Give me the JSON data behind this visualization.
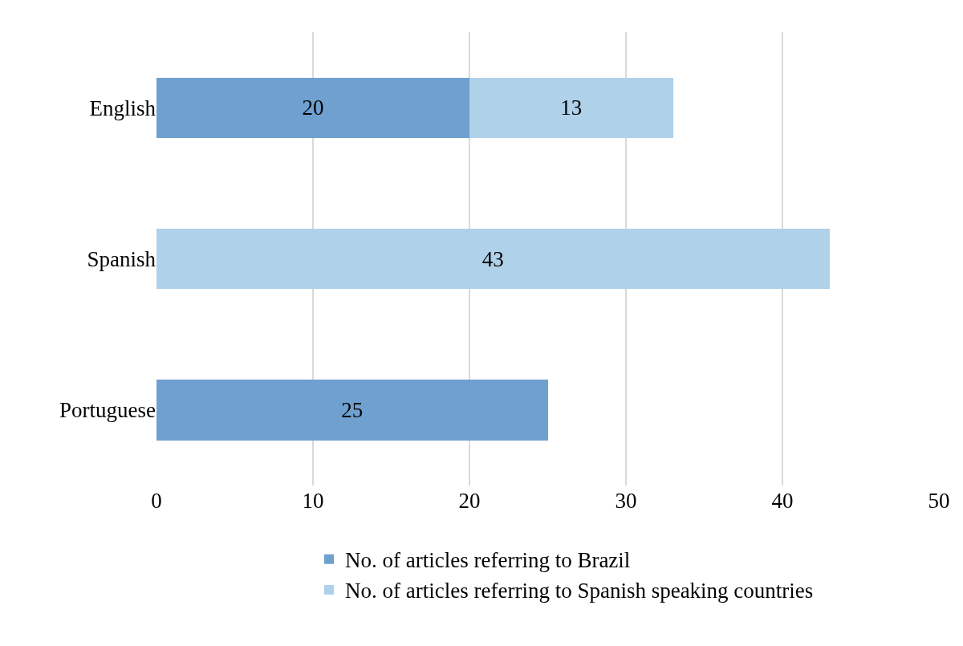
{
  "chart_data": {
    "type": "bar",
    "orientation": "horizontal",
    "stacked": true,
    "categories": [
      "English",
      "Spanish",
      "Portuguese"
    ],
    "series": [
      {
        "name": "No. of articles referring to Brazil",
        "color": "#6fa0cf",
        "values": [
          20,
          null,
          25
        ]
      },
      {
        "name": "No. of articles referring to Spanish speaking countries",
        "color": "#afd1ea",
        "values": [
          13,
          43,
          null
        ]
      }
    ],
    "xlim": [
      0,
      50
    ],
    "xticks": [
      0,
      10,
      20,
      30,
      40,
      50
    ],
    "grid": "x",
    "legend": "bottom",
    "data_labels": true
  }
}
